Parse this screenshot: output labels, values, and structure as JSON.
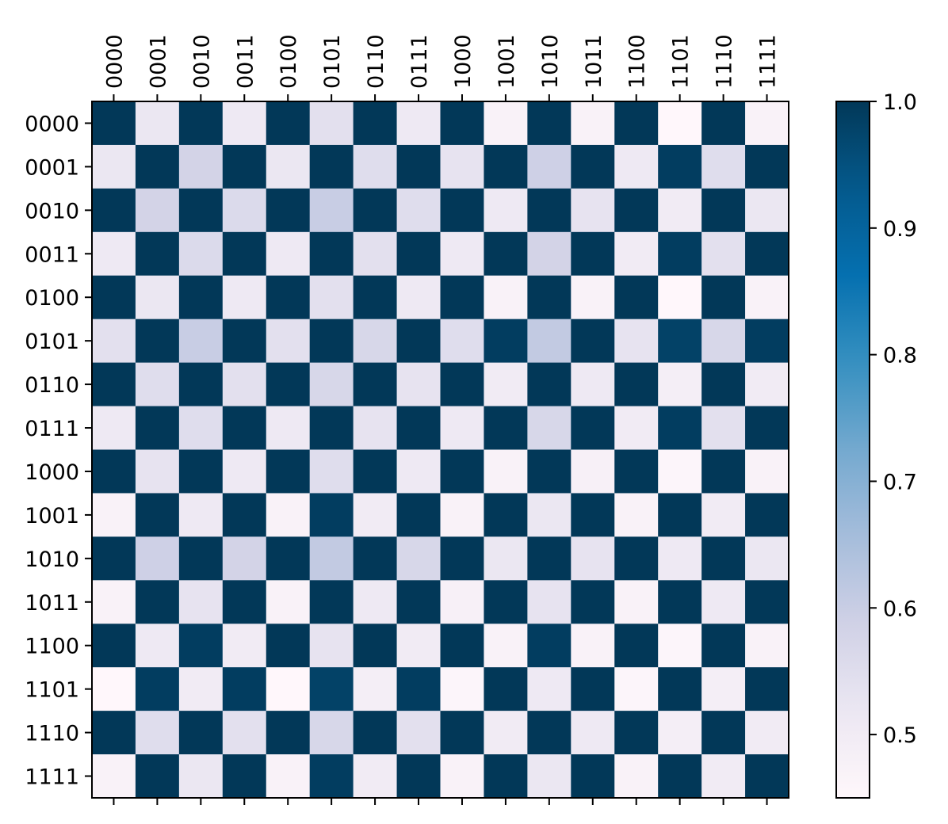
{
  "chart_data": {
    "type": "heatmap",
    "title": "",
    "xlabel": "",
    "ylabel": "",
    "x_categories": [
      "0000",
      "0001",
      "0010",
      "0011",
      "0100",
      "0101",
      "0110",
      "0111",
      "1000",
      "1001",
      "1010",
      "1011",
      "1100",
      "1101",
      "1110",
      "1111"
    ],
    "y_categories": [
      "0000",
      "0001",
      "0010",
      "0011",
      "0100",
      "0101",
      "0110",
      "0111",
      "1000",
      "1001",
      "1010",
      "1011",
      "1100",
      "1101",
      "1110",
      "1111"
    ],
    "values": [
      [
        1.0,
        0.52,
        1.0,
        0.51,
        1.0,
        0.54,
        1.0,
        0.51,
        1.0,
        0.47,
        1.0,
        0.47,
        1.0,
        0.45,
        1.0,
        0.47
      ],
      [
        0.52,
        1.0,
        0.58,
        1.0,
        0.52,
        1.0,
        0.55,
        1.0,
        0.53,
        1.0,
        0.59,
        1.0,
        0.51,
        0.99,
        0.55,
        1.0
      ],
      [
        1.0,
        0.58,
        1.0,
        0.56,
        1.0,
        0.6,
        1.0,
        0.55,
        1.0,
        0.51,
        1.0,
        0.53,
        1.0,
        0.5,
        1.0,
        0.52
      ],
      [
        0.51,
        1.0,
        0.56,
        1.0,
        0.51,
        1.0,
        0.54,
        1.0,
        0.51,
        1.0,
        0.58,
        1.0,
        0.5,
        0.99,
        0.54,
        1.0
      ],
      [
        1.0,
        0.52,
        1.0,
        0.51,
        1.0,
        0.54,
        1.0,
        0.51,
        1.0,
        0.47,
        1.0,
        0.47,
        1.0,
        0.45,
        1.0,
        0.47
      ],
      [
        0.54,
        1.0,
        0.6,
        1.0,
        0.54,
        1.0,
        0.57,
        1.0,
        0.55,
        0.99,
        0.61,
        1.0,
        0.53,
        0.98,
        0.57,
        0.99
      ],
      [
        1.0,
        0.55,
        1.0,
        0.54,
        1.0,
        0.57,
        1.0,
        0.53,
        1.0,
        0.5,
        1.0,
        0.51,
        1.0,
        0.49,
        1.0,
        0.5
      ],
      [
        0.51,
        1.0,
        0.55,
        1.0,
        0.51,
        1.0,
        0.53,
        1.0,
        0.51,
        1.0,
        0.57,
        1.0,
        0.5,
        0.99,
        0.54,
        1.0
      ],
      [
        1.0,
        0.53,
        1.0,
        0.51,
        1.0,
        0.55,
        1.0,
        0.51,
        1.0,
        0.47,
        1.0,
        0.48,
        1.0,
        0.46,
        1.0,
        0.47
      ],
      [
        0.47,
        1.0,
        0.51,
        1.0,
        0.47,
        0.99,
        0.5,
        1.0,
        0.47,
        1.0,
        0.52,
        1.0,
        0.47,
        1.0,
        0.5,
        1.0
      ],
      [
        1.0,
        0.59,
        1.0,
        0.58,
        1.0,
        0.61,
        1.0,
        0.57,
        1.0,
        0.52,
        1.0,
        0.53,
        1.0,
        0.51,
        1.0,
        0.52
      ],
      [
        0.47,
        1.0,
        0.53,
        1.0,
        0.47,
        1.0,
        0.51,
        1.0,
        0.48,
        1.0,
        0.53,
        1.0,
        0.47,
        1.0,
        0.51,
        1.0
      ],
      [
        1.0,
        0.51,
        0.99,
        0.5,
        1.0,
        0.53,
        1.0,
        0.5,
        1.0,
        0.47,
        0.99,
        0.47,
        1.0,
        0.46,
        1.0,
        0.47
      ],
      [
        0.45,
        0.99,
        0.5,
        0.99,
        0.45,
        0.98,
        0.49,
        0.99,
        0.46,
        1.0,
        0.51,
        1.0,
        0.46,
        1.0,
        0.49,
        1.0
      ],
      [
        1.0,
        0.55,
        1.0,
        0.54,
        1.0,
        0.57,
        1.0,
        0.54,
        1.0,
        0.5,
        1.0,
        0.51,
        1.0,
        0.49,
        1.0,
        0.5
      ],
      [
        0.47,
        1.0,
        0.52,
        1.0,
        0.47,
        0.99,
        0.5,
        1.0,
        0.47,
        1.0,
        0.52,
        1.0,
        0.47,
        1.0,
        0.5,
        1.0
      ]
    ],
    "colorbar": {
      "colormap": "PuBu",
      "vmin": 0.45,
      "vmax": 1.0,
      "ticks": [
        0.5,
        0.6,
        0.7,
        0.8,
        0.9,
        1.0
      ],
      "tick_labels": [
        "0.5",
        "0.6",
        "0.7",
        "0.8",
        "0.9",
        "1.0"
      ]
    },
    "x_ticks_position": "top",
    "x_tick_rotation": "vertical",
    "grid": false
  }
}
